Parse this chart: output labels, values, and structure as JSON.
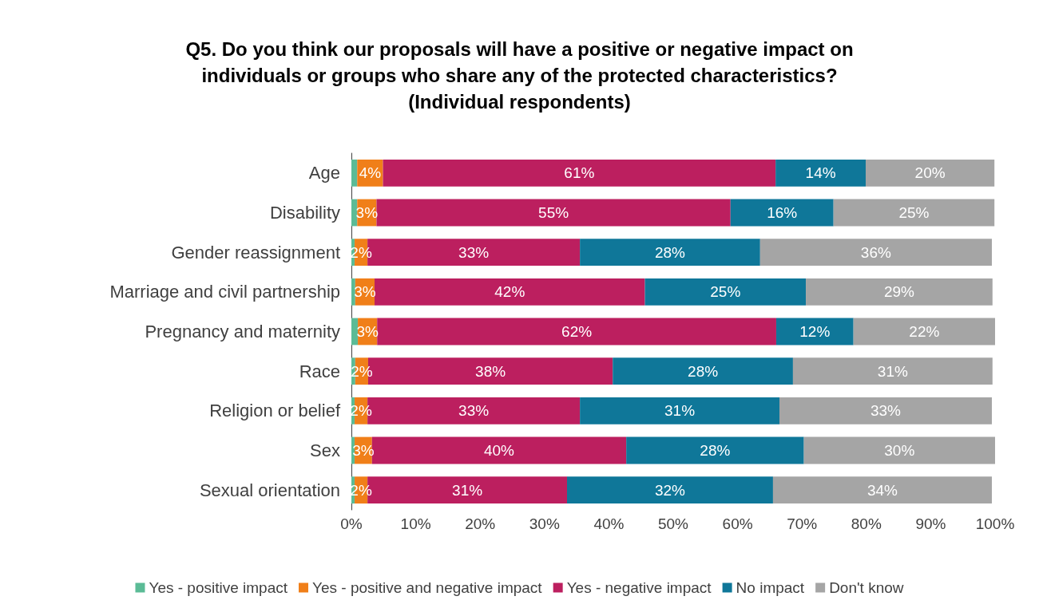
{
  "chart_data": {
    "type": "bar",
    "orientation": "horizontal",
    "stacked": true,
    "title": "Q5. Do you think our proposals will have a positive or negative impact on\nindividuals or groups who share any of the protected characteristics?\n(Individual respondents)",
    "categories": [
      "Age",
      "Disability",
      "Gender reassignment",
      "Marriage and civil partnership",
      "Pregnancy and maternity",
      "Race",
      "Religion or belief",
      "Sex",
      "Sexual orientation"
    ],
    "series": [
      {
        "name": "Yes - positive impact",
        "color": "#5bbb96",
        "values": [
          0.9,
          0.9,
          0.5,
          0.6,
          1.0,
          0.6,
          0.5,
          0.5,
          0.5
        ]
      },
      {
        "name": "Yes - positive and negative impact",
        "color": "#f07f19",
        "values": [
          4,
          3,
          2,
          3,
          3,
          2,
          2,
          2.7,
          2
        ],
        "value_labels": [
          "4%",
          "3%",
          "2%",
          "3%",
          "3%",
          "2%",
          "2%",
          "3%",
          "2%"
        ]
      },
      {
        "name": "Yes - negative impact",
        "color": "#bc1f5f",
        "values": [
          61,
          55,
          33,
          42,
          62,
          38,
          33,
          39.5,
          31
        ],
        "value_labels": [
          "61%",
          "55%",
          "33%",
          "42%",
          "62%",
          "38%",
          "33%",
          "40%",
          "31%"
        ]
      },
      {
        "name": "No impact",
        "color": "#0f7799",
        "values": [
          14,
          16,
          28,
          25,
          12,
          28,
          31,
          27.6,
          32
        ],
        "value_labels": [
          "14%",
          "16%",
          "28%",
          "25%",
          "12%",
          "28%",
          "31%",
          "28%",
          "32%"
        ]
      },
      {
        "name": "Don't know",
        "color": "#a5a5a5",
        "values": [
          20,
          25,
          36,
          29,
          22,
          31,
          33,
          29.7,
          34
        ],
        "value_labels": [
          "20%",
          "25%",
          "36%",
          "29%",
          "22%",
          "31%",
          "33%",
          "30%",
          "34%"
        ]
      }
    ],
    "xlim": [
      0,
      100
    ],
    "xticks": [
      {
        "value": 0,
        "label": "0%"
      },
      {
        "value": 10,
        "label": "10%"
      },
      {
        "value": 20,
        "label": "20%"
      },
      {
        "value": 30,
        "label": "30%"
      },
      {
        "value": 40,
        "label": "40%"
      },
      {
        "value": 50,
        "label": "50%"
      },
      {
        "value": 60,
        "label": "60%"
      },
      {
        "value": 70,
        "label": "70%"
      },
      {
        "value": 80,
        "label": "80%"
      },
      {
        "value": 90,
        "label": "90%"
      },
      {
        "value": 100,
        "label": "100%"
      }
    ],
    "grid": false,
    "legend": "bottom"
  }
}
